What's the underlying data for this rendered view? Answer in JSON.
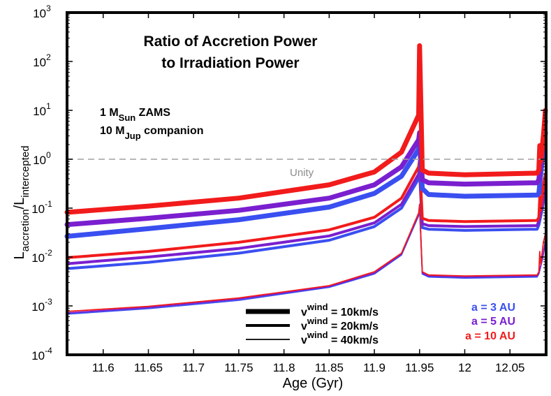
{
  "chart_data": {
    "type": "line",
    "title_line1": "Ratio of Accretion Power",
    "title_line2": "to Irradiation Power",
    "xlabel": "Age (Gyr)",
    "ylabel": {
      "main": "L",
      "sub1": "accretion",
      "sep": "/L",
      "sub2": "intercepted"
    },
    "xlim": [
      11.56,
      12.09
    ],
    "ylim_log10": [
      -4,
      3
    ],
    "x_ticks": [
      {
        "value": 11.6,
        "label": "11.6"
      },
      {
        "value": 11.65,
        "label": "11.65"
      },
      {
        "value": 11.7,
        "label": "11.7"
      },
      {
        "value": 11.75,
        "label": "11.75"
      },
      {
        "value": 11.8,
        "label": "11.8"
      },
      {
        "value": 11.85,
        "label": "11.85"
      },
      {
        "value": 11.9,
        "label": "11.9"
      },
      {
        "value": 11.95,
        "label": "11.95"
      },
      {
        "value": 12.0,
        "label": "12"
      },
      {
        "value": 12.05,
        "label": "12.05"
      }
    ],
    "y_ticks": [
      {
        "exp": -4,
        "base": "10",
        "sup": "-4"
      },
      {
        "exp": -3,
        "base": "10",
        "sup": "-3"
      },
      {
        "exp": -2,
        "base": "10",
        "sup": "-2"
      },
      {
        "exp": -1,
        "base": "10",
        "sup": "-1"
      },
      {
        "exp": 0,
        "base": "10",
        "sup": "0"
      },
      {
        "exp": 1,
        "base": "10",
        "sup": "1"
      },
      {
        "exp": 2,
        "base": "10",
        "sup": "2"
      },
      {
        "exp": 3,
        "base": "10",
        "sup": "3"
      }
    ],
    "reference_line": {
      "value": 1,
      "label": "Unity",
      "color": "#a0a0a0"
    },
    "annotation": {
      "line1_pre": "1 M",
      "line1_sub": "Sun",
      "line1_post": " ZAMS",
      "line2_pre": "10 M",
      "line2_sub": "Jup",
      "line2_post": " companion"
    },
    "legend_winds": [
      {
        "pre": "v",
        "sup": "wind",
        "text": " = 10km/s",
        "weight": "thick"
      },
      {
        "pre": "v",
        "sup": "wind",
        "text": " = 20km/s",
        "weight": "medium"
      },
      {
        "pre": "v",
        "sup": "wind",
        "text": " = 40km/s",
        "weight": "thin"
      }
    ],
    "legend_separations": [
      {
        "label": "a = 3 AU",
        "color": "#3a4ff0"
      },
      {
        "label": "a = 5 AU",
        "color": "#7a1fcf"
      },
      {
        "label": "a = 10 AU",
        "color": "#f21b1b"
      }
    ],
    "series": [
      {
        "name": "v=10km/s, a=3 AU",
        "color": "#3a4ff0",
        "weight": "thick",
        "points": [
          [
            11.56,
            0.0265
          ],
          [
            11.65,
            0.038
          ],
          [
            11.75,
            0.058
          ],
          [
            11.85,
            0.105
          ],
          [
            11.9,
            0.2
          ],
          [
            11.93,
            0.45
          ],
          [
            11.949,
            1.6
          ]
        ],
        "peak": [
          11.95,
          2.2
        ],
        "drop": [
          11.953,
          0.25
        ],
        "plateau": [
          [
            11.953,
            0.25
          ],
          [
            11.96,
            0.19
          ],
          [
            12.0,
            0.175
          ],
          [
            12.08,
            0.185
          ]
        ],
        "tail": [
          [
            12.082,
            0.2
          ],
          [
            12.086,
            1.1
          ],
          [
            12.09,
            3.5
          ]
        ]
      },
      {
        "name": "v=10km/s, a=5 AU",
        "color": "#7a1fcf",
        "weight": "thick",
        "points": [
          [
            11.56,
            0.046
          ],
          [
            11.65,
            0.062
          ],
          [
            11.75,
            0.09
          ],
          [
            11.85,
            0.16
          ],
          [
            11.9,
            0.3
          ],
          [
            11.93,
            0.7
          ],
          [
            11.949,
            2.5
          ]
        ],
        "peak": [
          11.95,
          3.5
        ],
        "drop": [
          11.953,
          0.38
        ],
        "plateau": [
          [
            11.953,
            0.38
          ],
          [
            11.96,
            0.33
          ],
          [
            12.0,
            0.31
          ],
          [
            12.08,
            0.33
          ]
        ],
        "tail": [
          [
            12.082,
            0.38
          ],
          [
            12.086,
            1.8
          ],
          [
            12.09,
            6
          ]
        ]
      },
      {
        "name": "v=10km/s, a=10 AU",
        "color": "#f21b1b",
        "weight": "thick",
        "points": [
          [
            11.56,
            0.082
          ],
          [
            11.65,
            0.11
          ],
          [
            11.75,
            0.16
          ],
          [
            11.85,
            0.3
          ],
          [
            11.9,
            0.55
          ],
          [
            11.93,
            1.4
          ],
          [
            11.949,
            8
          ]
        ],
        "peak": [
          11.95,
          210
        ],
        "drop": [
          11.953,
          0.6
        ],
        "plateau": [
          [
            11.953,
            0.6
          ],
          [
            11.96,
            0.52
          ],
          [
            12.0,
            0.48
          ],
          [
            12.08,
            0.52
          ]
        ],
        "tail": [
          [
            12.082,
            0.6
          ],
          [
            12.083,
            1.9
          ],
          [
            12.084,
            0.9
          ],
          [
            12.087,
            3
          ],
          [
            12.09,
            10
          ]
        ]
      },
      {
        "name": "v=20km/s, a=3 AU",
        "color": "#3a4ff0",
        "weight": "medium",
        "points": [
          [
            11.56,
            0.0058
          ],
          [
            11.65,
            0.0078
          ],
          [
            11.75,
            0.012
          ],
          [
            11.85,
            0.022
          ],
          [
            11.9,
            0.042
          ],
          [
            11.93,
            0.1
          ],
          [
            11.949,
            0.4
          ]
        ],
        "peak": [
          11.95,
          0.55
        ],
        "drop": [
          11.953,
          0.04
        ],
        "plateau": [
          [
            11.953,
            0.04
          ],
          [
            11.96,
            0.037
          ],
          [
            12.0,
            0.035
          ],
          [
            12.08,
            0.037
          ]
        ],
        "tail": [
          [
            12.082,
            0.045
          ],
          [
            12.086,
            0.1
          ],
          [
            12.09,
            0.25
          ]
        ]
      },
      {
        "name": "v=20km/s, a=5 AU",
        "color": "#7a1fcf",
        "weight": "medium",
        "points": [
          [
            11.56,
            0.0073
          ],
          [
            11.65,
            0.01
          ],
          [
            11.75,
            0.015
          ],
          [
            11.85,
            0.027
          ],
          [
            11.9,
            0.05
          ],
          [
            11.93,
            0.12
          ],
          [
            11.949,
            0.5
          ]
        ],
        "peak": [
          11.95,
          0.7
        ],
        "drop": [
          11.953,
          0.048
        ],
        "plateau": [
          [
            11.953,
            0.048
          ],
          [
            11.96,
            0.044
          ],
          [
            12.0,
            0.042
          ],
          [
            12.08,
            0.044
          ]
        ],
        "tail": [
          [
            12.082,
            0.055
          ],
          [
            12.086,
            0.13
          ],
          [
            12.09,
            0.35
          ]
        ]
      },
      {
        "name": "v=20km/s, a=10 AU",
        "color": "#f21b1b",
        "weight": "medium",
        "points": [
          [
            11.56,
            0.0097
          ],
          [
            11.65,
            0.013
          ],
          [
            11.75,
            0.02
          ],
          [
            11.85,
            0.036
          ],
          [
            11.9,
            0.065
          ],
          [
            11.93,
            0.16
          ],
          [
            11.949,
            0.7
          ]
        ],
        "peak": [
          11.95,
          1.0
        ],
        "drop": [
          11.953,
          0.062
        ],
        "plateau": [
          [
            11.953,
            0.062
          ],
          [
            11.96,
            0.056
          ],
          [
            12.0,
            0.053
          ],
          [
            12.08,
            0.056
          ]
        ],
        "tail": [
          [
            12.082,
            0.065
          ],
          [
            12.083,
            0.17
          ],
          [
            12.084,
            0.09
          ],
          [
            12.087,
            0.3
          ],
          [
            12.09,
            0.5
          ]
        ]
      },
      {
        "name": "v=40km/s, a=3 AU",
        "color": "#3a4ff0",
        "weight": "thin",
        "points": [
          [
            11.56,
            0.00068
          ],
          [
            11.65,
            0.00088
          ],
          [
            11.75,
            0.0013
          ],
          [
            11.85,
            0.0024
          ],
          [
            11.9,
            0.0045
          ],
          [
            11.93,
            0.011
          ],
          [
            11.949,
            0.07
          ]
        ],
        "peak": [
          11.95,
          0.1
        ],
        "drop": [
          11.953,
          0.0045
        ],
        "plateau": [
          [
            11.953,
            0.0045
          ],
          [
            11.96,
            0.0039
          ],
          [
            12.0,
            0.0037
          ],
          [
            12.08,
            0.0039
          ]
        ],
        "tail": [
          [
            12.082,
            0.0045
          ],
          [
            12.086,
            0.009
          ],
          [
            12.09,
            0.02
          ]
        ]
      },
      {
        "name": "v=40km/s, a=5 AU",
        "color": "#7a1fcf",
        "weight": "thin",
        "points": [
          [
            11.56,
            0.00072
          ],
          [
            11.65,
            0.00093
          ],
          [
            11.75,
            0.00138
          ],
          [
            11.85,
            0.0025
          ],
          [
            11.9,
            0.0047
          ],
          [
            11.93,
            0.0115
          ],
          [
            11.949,
            0.075
          ]
        ],
        "peak": [
          11.95,
          0.11
        ],
        "drop": [
          11.953,
          0.0047
        ],
        "plateau": [
          [
            11.953,
            0.0047
          ],
          [
            11.96,
            0.0041
          ],
          [
            12.0,
            0.0039
          ],
          [
            12.08,
            0.0041
          ]
        ],
        "tail": [
          [
            12.082,
            0.0047
          ],
          [
            12.086,
            0.0095
          ],
          [
            12.09,
            0.022
          ]
        ]
      },
      {
        "name": "v=40km/s, a=10 AU",
        "color": "#f21b1b",
        "weight": "thin",
        "points": [
          [
            11.56,
            0.00077
          ],
          [
            11.65,
            0.00098
          ],
          [
            11.75,
            0.00145
          ],
          [
            11.85,
            0.0026
          ],
          [
            11.9,
            0.005
          ],
          [
            11.93,
            0.012
          ],
          [
            11.949,
            0.08
          ]
        ],
        "peak": [
          11.95,
          0.12
        ],
        "drop": [
          11.953,
          0.005
        ],
        "plateau": [
          [
            11.953,
            0.005
          ],
          [
            11.96,
            0.0043
          ],
          [
            12.0,
            0.0041
          ],
          [
            12.08,
            0.0043
          ]
        ],
        "tail": [
          [
            12.082,
            0.005
          ],
          [
            12.083,
            0.013
          ],
          [
            12.084,
            0.007
          ],
          [
            12.087,
            0.02
          ],
          [
            12.09,
            0.03
          ]
        ]
      }
    ]
  }
}
